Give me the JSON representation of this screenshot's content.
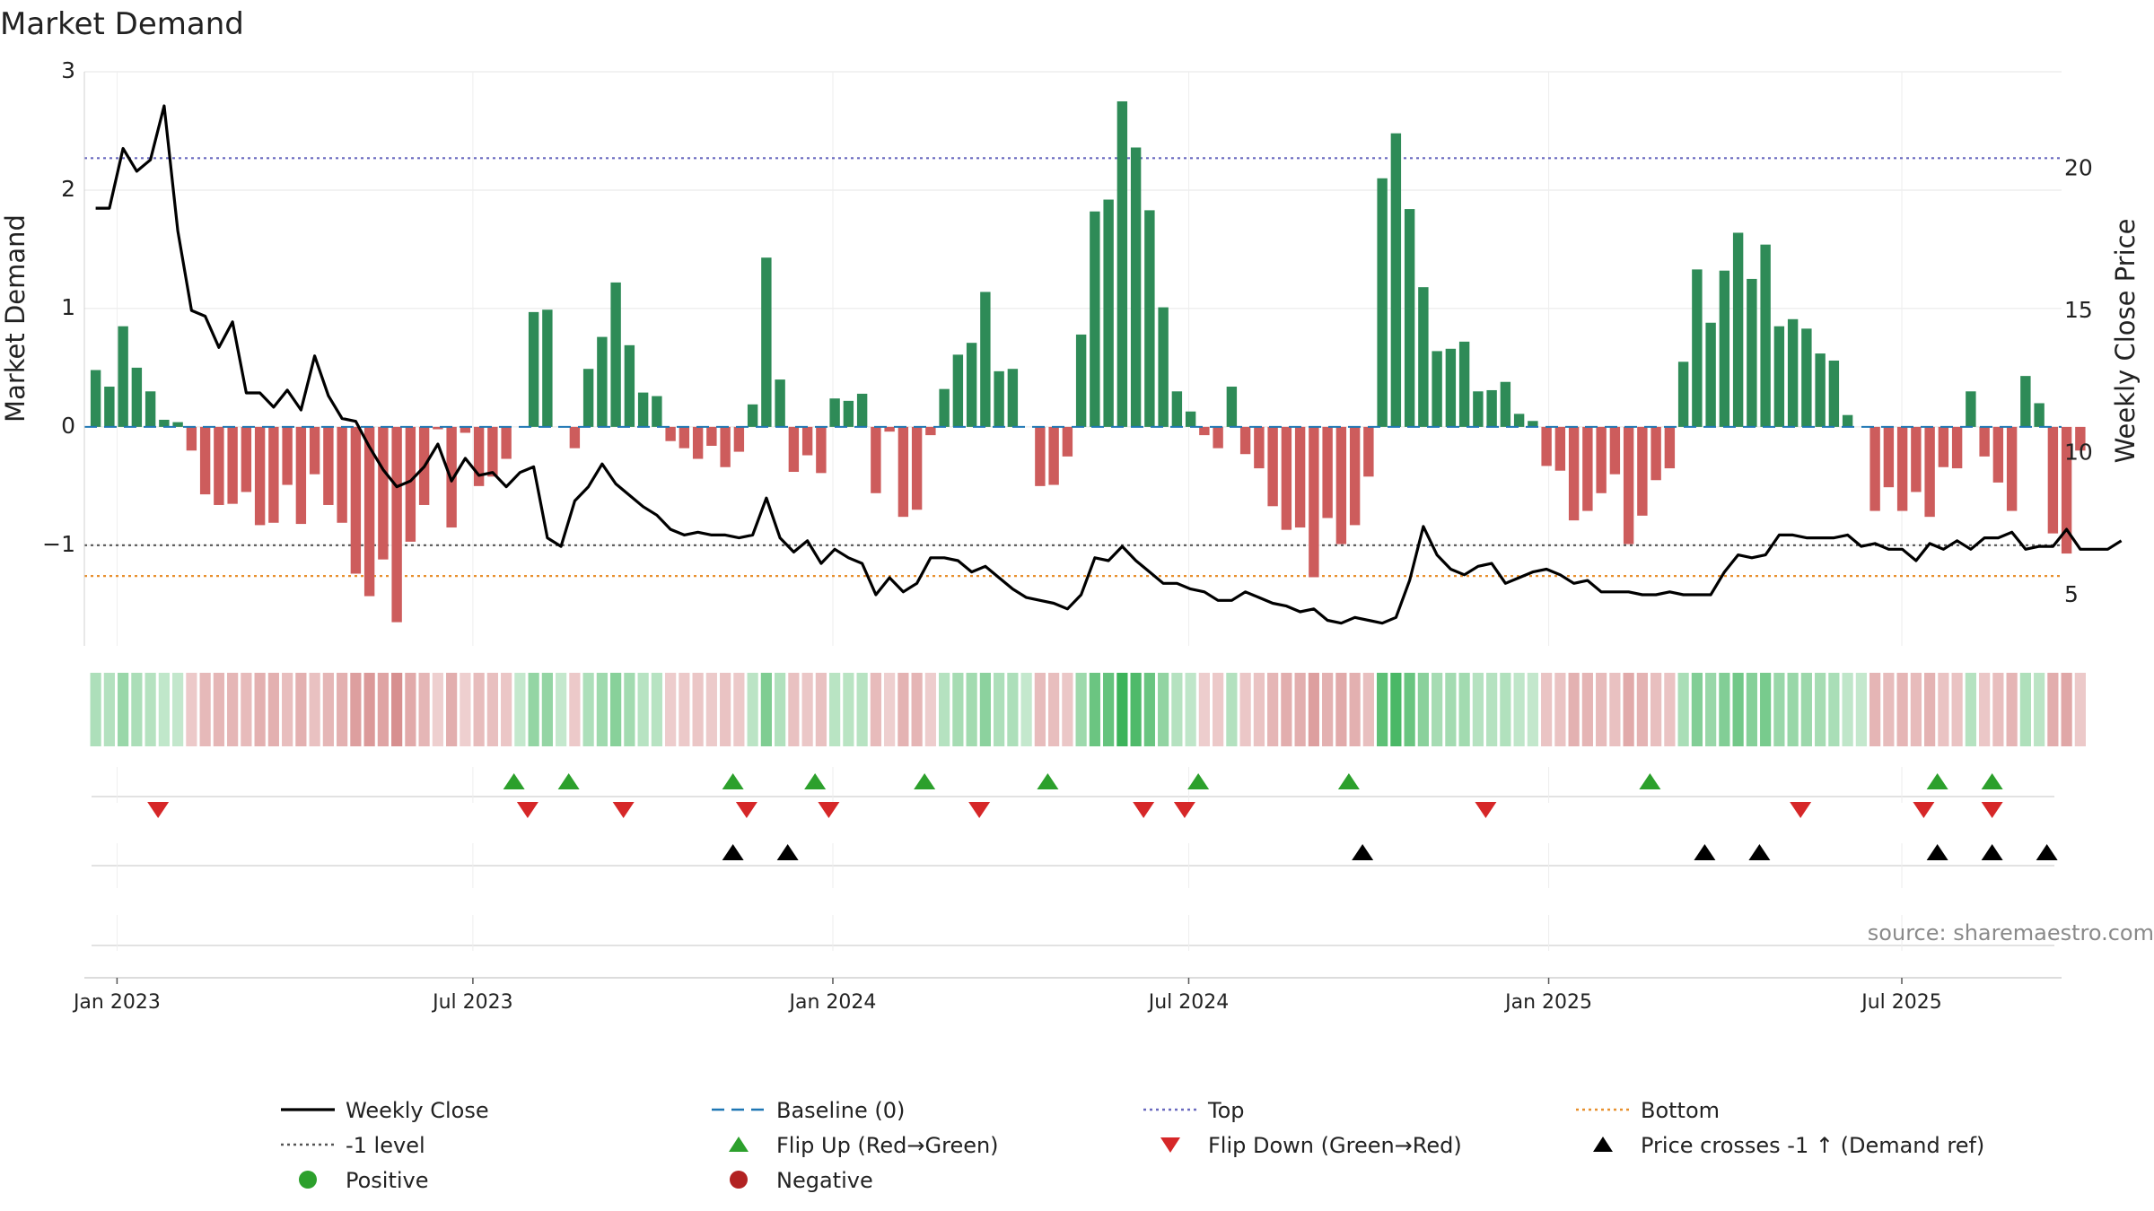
{
  "chart_data": {
    "type": "bar",
    "title": "Market Demand",
    "ylabel_left": "Market Demand",
    "ylabel_right": "Weekly Close Price",
    "source": "source: sharemaestro.com",
    "ylim_left": [
      -1.85,
      3.0
    ],
    "left_ticks": [
      {
        "v": 3,
        "label": "3"
      },
      {
        "v": 2,
        "label": "2"
      },
      {
        "v": 1,
        "label": "1"
      },
      {
        "v": 0,
        "label": "0"
      },
      {
        "v": -1,
        "label": "−1"
      }
    ],
    "ylim_right": [
      3.2,
      23.4
    ],
    "right_ticks": [
      {
        "v": 20,
        "label": "20"
      },
      {
        "v": 15,
        "label": "15"
      },
      {
        "v": 10,
        "label": "10"
      },
      {
        "v": 5,
        "label": "5"
      }
    ],
    "x_ticks": [
      {
        "week": 0,
        "label": "Jan 2023"
      },
      {
        "week": 26,
        "label": "Jul 2023"
      },
      {
        "week": 52.3,
        "label": "Jan 2024"
      },
      {
        "week": 78.3,
        "label": "Jul 2024"
      },
      {
        "week": 104.6,
        "label": "Jan 2025"
      },
      {
        "week": 130.4,
        "label": "Jul 2025"
      }
    ],
    "week_start": -2,
    "reference_lines": {
      "baseline": 0,
      "top": 2.27,
      "minus_one": -1,
      "bottom": -1.26
    },
    "demand": [
      0.48,
      0.34,
      0.85,
      0.5,
      0.3,
      0.06,
      0.04,
      -0.2,
      -0.57,
      -0.66,
      -0.65,
      -0.55,
      -0.83,
      -0.81,
      -0.49,
      -0.82,
      -0.4,
      -0.66,
      -0.81,
      -1.24,
      -1.43,
      -1.12,
      -1.65,
      -0.97,
      -0.66,
      -0.02,
      -0.85,
      -0.05,
      -0.5,
      -0.42,
      -0.27,
      0.0,
      0.97,
      0.99,
      0.0,
      -0.18,
      0.49,
      0.76,
      1.22,
      0.69,
      0.29,
      0.26,
      -0.12,
      -0.18,
      -0.27,
      -0.16,
      -0.34,
      -0.21,
      0.19,
      1.43,
      0.4,
      -0.38,
      -0.24,
      -0.39,
      0.24,
      0.22,
      0.28,
      -0.56,
      -0.04,
      -0.76,
      -0.7,
      -0.07,
      0.32,
      0.61,
      0.71,
      1.14,
      0.47,
      0.49,
      0.0,
      -0.5,
      -0.49,
      -0.25,
      0.78,
      1.82,
      1.92,
      2.75,
      2.36,
      1.83,
      1.01,
      0.3,
      0.13,
      -0.07,
      -0.18,
      0.34,
      -0.23,
      -0.35,
      -0.67,
      -0.87,
      -0.85,
      -1.27,
      -0.77,
      -0.99,
      -0.83,
      -0.42,
      2.1,
      2.48,
      1.84,
      1.18,
      0.64,
      0.66,
      0.72,
      0.3,
      0.31,
      0.38,
      0.11,
      0.05,
      -0.33,
      -0.37,
      -0.79,
      -0.71,
      -0.56,
      -0.4,
      -0.99,
      -0.75,
      -0.45,
      -0.35,
      0.55,
      1.33,
      0.88,
      1.32,
      1.64,
      1.25,
      1.54,
      0.85,
      0.91,
      0.83,
      0.62,
      0.56,
      0.1,
      0.0,
      -0.71,
      -0.51,
      -0.71,
      -0.55,
      -0.76,
      -0.34,
      -0.35,
      0.3,
      -0.25,
      -0.47,
      -0.71,
      0.43,
      0.2,
      -0.9,
      -1.07,
      -0.2
    ],
    "weekly_close": [
      18.6,
      18.6,
      20.7,
      19.9,
      20.3,
      22.2,
      17.8,
      15.0,
      14.8,
      13.7,
      14.6,
      12.1,
      12.1,
      11.6,
      12.2,
      11.5,
      13.4,
      12.0,
      11.2,
      11.1,
      10.2,
      9.4,
      8.8,
      9.0,
      9.5,
      10.3,
      9.0,
      9.8,
      9.2,
      9.3,
      8.8,
      9.3,
      9.5,
      7.0,
      6.7,
      8.3,
      8.8,
      9.6,
      8.9,
      8.5,
      8.1,
      7.8,
      7.3,
      7.1,
      7.2,
      7.1,
      7.1,
      7.0,
      7.1,
      8.4,
      7.0,
      6.5,
      6.9,
      6.1,
      6.6,
      6.3,
      6.1,
      5.0,
      5.6,
      5.1,
      5.4,
      6.3,
      6.3,
      6.2,
      5.8,
      6.0,
      5.6,
      5.2,
      4.9,
      4.8,
      4.7,
      4.5,
      5.0,
      6.3,
      6.2,
      6.7,
      6.2,
      5.8,
      5.4,
      5.4,
      5.2,
      5.1,
      4.8,
      4.8,
      5.1,
      4.9,
      4.7,
      4.6,
      4.4,
      4.5,
      4.1,
      4.0,
      4.2,
      4.1,
      4.0,
      4.2,
      5.5,
      7.4,
      6.4,
      5.9,
      5.7,
      6.0,
      6.1,
      5.4,
      5.6,
      5.8,
      5.9,
      5.7,
      5.4,
      5.5,
      5.1,
      5.1,
      5.1,
      5.0,
      5.0,
      5.1,
      5.0,
      5.0,
      5.0,
      5.8,
      6.4,
      6.3,
      6.4,
      7.1,
      7.1,
      7.0,
      7.0,
      7.0,
      7.1,
      6.7,
      6.8,
      6.6,
      6.6,
      6.2,
      6.8,
      6.6,
      6.9,
      6.6,
      7.0,
      7.0,
      7.2,
      6.6,
      6.7,
      6.7,
      7.3,
      6.6,
      6.6,
      6.6,
      6.9
    ],
    "flip_up_weeks": [
      29.0,
      33.0,
      45.0,
      51.0,
      59.0,
      68.0,
      79.0,
      90.0,
      112.0,
      133.0,
      137.0
    ],
    "flip_down_weeks": [
      3.0,
      30.0,
      37.0,
      46.0,
      52.0,
      63.0,
      75.0,
      78.0,
      100.0,
      123.0,
      132.0,
      137.0
    ],
    "price_cross_weeks": [
      45.0,
      49.0,
      91.0,
      116.0,
      120.0,
      133.0,
      137.0,
      141.0
    ],
    "legend": [
      {
        "label": "Weekly Close",
        "marker": "line",
        "color": "#000000"
      },
      {
        "label": "Baseline (0)",
        "marker": "dashed",
        "color": "#1f77b4"
      },
      {
        "label": "Top",
        "marker": "dotted",
        "color": "#6a6abf"
      },
      {
        "label": "Bottom",
        "marker": "dotted",
        "color": "#e8902e"
      },
      {
        "label": "-1 level",
        "marker": "dotted",
        "color": "#555555"
      },
      {
        "label": "Flip Up (Red→Green)",
        "marker": "tri-up",
        "color": "#2ca02c"
      },
      {
        "label": "Flip Down (Green→Red)",
        "marker": "tri-down",
        "color": "#d62728"
      },
      {
        "label": "Price crosses -1 ↑ (Demand ref)",
        "marker": "tri-up",
        "color": "#000000"
      },
      {
        "label": "Positive",
        "marker": "circle",
        "color": "#2ca02c"
      },
      {
        "label": "Negative",
        "marker": "circle",
        "color": "#b22222"
      }
    ]
  },
  "colors": {
    "positive_bar": "#2e8b57",
    "negative_bar": "#cd5c5c",
    "price_line": "#000000",
    "baseline": "#1f77b4",
    "top_line": "#6a6abf",
    "minus_one_line": "#555555",
    "bottom_line": "#e8902e",
    "flip_up": "#2ca02c",
    "flip_down": "#d62728",
    "price_cross": "#000000",
    "grid": "#e6e6e6",
    "strip_positive": "#3cb35a",
    "strip_negative": "#c86464"
  }
}
